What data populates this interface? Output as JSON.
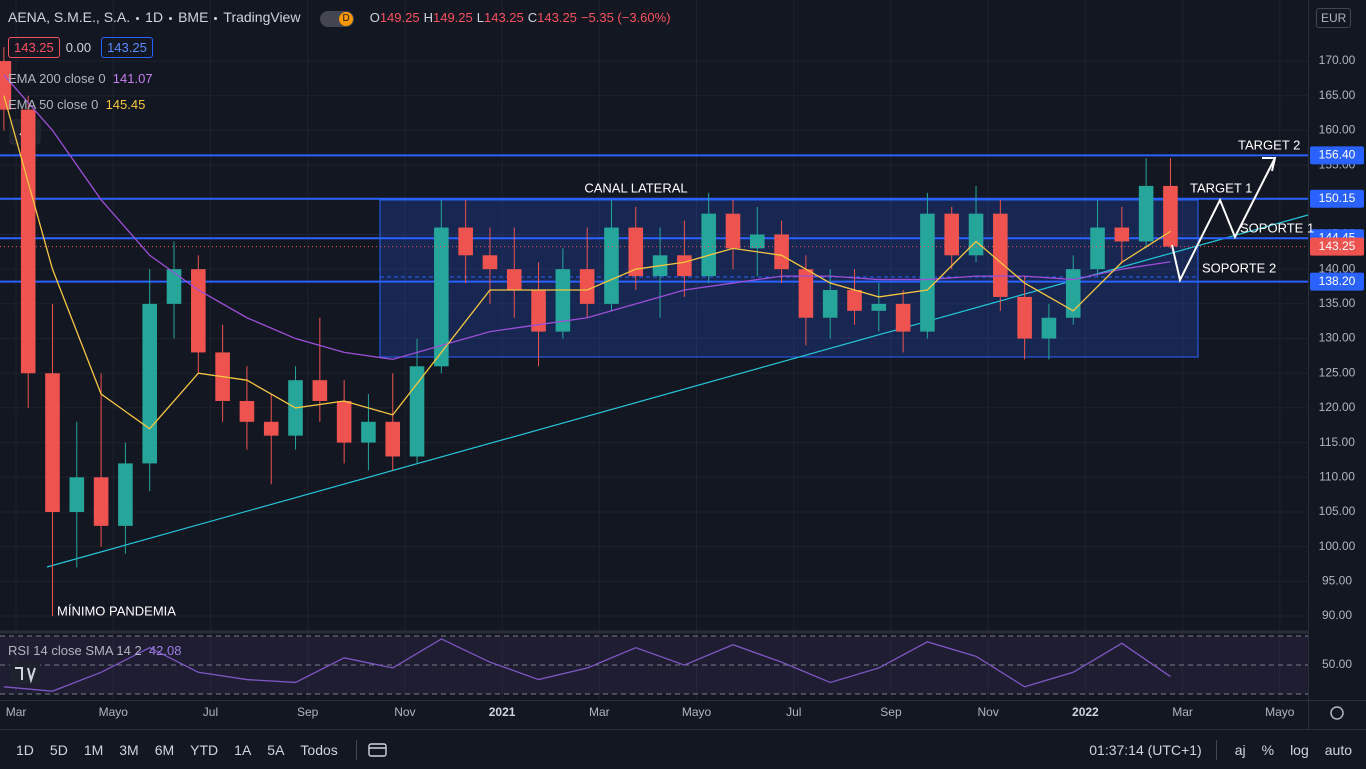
{
  "header": {
    "symbol": "AENA, S.M.E., S.A.",
    "interval": "1D",
    "exchange": "BME",
    "source": "TradingView",
    "mode": "D",
    "ohlc": [
      {
        "key": "O",
        "value": "149.25"
      },
      {
        "key": "H",
        "value": "149.25"
      },
      {
        "key": "L",
        "value": "143.25"
      },
      {
        "key": "C",
        "value": "143.25"
      }
    ],
    "change": "−5.35 (−3.60%)",
    "boxes": [
      "143.25",
      "0.00",
      "143.25"
    ],
    "currency": "EUR"
  },
  "chart_data": [
    {
      "type": "candlestick",
      "xlim": [
        -0.33,
        26.58
      ],
      "ylim": [
        87.7,
        178.8
      ],
      "xticks": [
        {
          "value": 0,
          "label": "Mar"
        },
        {
          "value": 2,
          "label": "Mayo"
        },
        {
          "value": 4,
          "label": "Jul"
        },
        {
          "value": 6,
          "label": "Sep"
        },
        {
          "value": 8,
          "label": "Nov"
        },
        {
          "value": 10,
          "label": "2021"
        },
        {
          "value": 12,
          "label": "Mar"
        },
        {
          "value": 14,
          "label": "Mayo"
        },
        {
          "value": 16,
          "label": "Jul"
        },
        {
          "value": 18,
          "label": "Sep"
        },
        {
          "value": 20,
          "label": "Nov"
        },
        {
          "value": 22,
          "label": "2022"
        },
        {
          "value": 24,
          "label": "Mar"
        },
        {
          "value": 26,
          "label": "Mayo"
        }
      ],
      "yticks": [
        {
          "value": 90,
          "label": "90.00"
        },
        {
          "value": 95,
          "label": "95.00"
        },
        {
          "value": 100,
          "label": "100.00"
        },
        {
          "value": 105,
          "label": "105.00"
        },
        {
          "value": 110,
          "label": "110.00"
        },
        {
          "value": 115,
          "label": "115.00"
        },
        {
          "value": 120,
          "label": "120.00"
        },
        {
          "value": 125,
          "label": "125.00"
        },
        {
          "value": 130,
          "label": "130.00"
        },
        {
          "value": 135,
          "label": "135.00"
        },
        {
          "value": 140,
          "label": "140.00"
        },
        {
          "value": 145,
          "label": "145.00"
        },
        {
          "value": 150,
          "label": "150.00"
        },
        {
          "value": 155,
          "label": "155.00"
        },
        {
          "value": 160,
          "label": "160.00"
        },
        {
          "value": 165,
          "label": "165.00"
        },
        {
          "value": 170,
          "label": "170.00"
        }
      ],
      "grid": true,
      "up_color": "#26a69a",
      "down_color": "#ef5350",
      "candles": {
        "x": [
          -0.25,
          0.25,
          0.75,
          1.25,
          1.75,
          2.25,
          2.75,
          3.25,
          3.75,
          4.25,
          4.75,
          5.25,
          5.75,
          6.25,
          6.75,
          7.25,
          7.75,
          8.25,
          8.75,
          9.25,
          9.75,
          10.25,
          10.75,
          11.25,
          11.75,
          12.25,
          12.75,
          13.25,
          13.75,
          14.25,
          14.75,
          15.25,
          15.75,
          16.25,
          16.75,
          17.25,
          17.75,
          18.25,
          18.75,
          19.25,
          19.75,
          20.25,
          20.75,
          21.25,
          21.75,
          22.25,
          22.75,
          23.25,
          23.75
        ],
        "open": [
          170,
          163,
          125,
          105,
          110,
          103,
          112,
          135,
          140,
          128,
          121,
          118,
          116,
          124,
          121,
          115,
          118,
          113,
          126,
          146,
          142,
          140,
          137,
          131,
          140,
          135,
          146,
          139,
          142,
          139,
          148,
          143,
          145,
          140,
          133,
          137,
          134,
          135,
          131,
          148,
          142,
          148,
          136,
          130,
          133,
          140,
          146,
          144,
          152
        ],
        "high": [
          172,
          165,
          135,
          118,
          125,
          115,
          140,
          144,
          142,
          132,
          126,
          122,
          126,
          133,
          124,
          122,
          125,
          130,
          150,
          150,
          146,
          146,
          141,
          143,
          146,
          150,
          149,
          146,
          147,
          151,
          150,
          149,
          147,
          142,
          140,
          140,
          138,
          137,
          151,
          149,
          152,
          150,
          139,
          135,
          142,
          150,
          149,
          156,
          156
        ],
        "low": [
          160,
          120,
          90,
          97,
          100,
          99,
          108,
          130,
          125,
          118,
          114,
          109,
          114,
          118,
          112,
          111,
          111,
          112,
          125,
          138,
          135,
          133,
          126,
          130,
          133,
          134,
          137,
          133,
          136,
          138,
          140,
          139,
          138,
          129,
          130,
          132,
          131,
          128,
          130,
          140,
          141,
          134,
          127,
          127,
          132,
          139,
          141,
          143,
          143
        ],
        "close": [
          163,
          125,
          105,
          110,
          103,
          112,
          135,
          140,
          128,
          121,
          118,
          116,
          124,
          121,
          115,
          118,
          113,
          126,
          146,
          142,
          140,
          137,
          131,
          140,
          135,
          146,
          139,
          142,
          139,
          148,
          143,
          145,
          140,
          133,
          137,
          134,
          135,
          131,
          148,
          142,
          148,
          136,
          130,
          133,
          140,
          146,
          144,
          152,
          143.25
        ]
      },
      "series": [
        {
          "name": "EMA 200 close 0",
          "color": "#9c4fd6",
          "x": [
            -0.25,
            0.75,
            1.75,
            2.75,
            3.75,
            4.75,
            5.75,
            6.75,
            7.75,
            8.75,
            9.75,
            10.75,
            11.75,
            12.75,
            13.75,
            14.75,
            15.75,
            16.75,
            17.75,
            18.75,
            19.75,
            20.75,
            21.75,
            22.75,
            23.75
          ],
          "values": [
            168,
            160,
            150,
            142,
            137,
            133,
            130,
            128,
            127,
            129,
            131,
            132,
            133,
            135,
            137,
            138,
            139,
            139,
            138.5,
            138.5,
            139,
            139,
            138.5,
            140,
            141.07
          ]
        },
        {
          "name": "EMA 50 close 0",
          "color": "#f5c542",
          "x": [
            -0.25,
            0.75,
            1.75,
            2.75,
            3.75,
            4.75,
            5.75,
            6.75,
            7.75,
            8.75,
            9.75,
            10.75,
            11.75,
            12.75,
            13.75,
            14.75,
            15.75,
            16.75,
            17.75,
            18.75,
            19.75,
            20.75,
            21.75,
            22.75,
            23.75
          ],
          "values": [
            165,
            140,
            122,
            117,
            125,
            124,
            120,
            121,
            119,
            128,
            137,
            137,
            137,
            140,
            141,
            143,
            142,
            138,
            136,
            137,
            144,
            138,
            134,
            141,
            145.45
          ]
        }
      ],
      "levels": [
        {
          "value": 156.4,
          "label": "156.40"
        },
        {
          "value": 150.15,
          "label": "150.15"
        },
        {
          "value": 144.45,
          "label": "144.45"
        },
        {
          "value": 138.2,
          "label": "138.20"
        }
      ],
      "level_color": "#2962ff",
      "annotations": [
        "CANAL LATERAL",
        "TARGET 2",
        "TARGET 1",
        "SOPORTE 1",
        "SOPORTE 2",
        "MÍNIMO PANDEMIA"
      ]
    },
    {
      "type": "line",
      "ylim": [
        25.9,
        72.8
      ],
      "yticks": [
        {
          "value": 50,
          "label": "50.00"
        }
      ],
      "bands": [
        30,
        70
      ],
      "series": [
        {
          "name": "RSI 14 close SMA 14 2",
          "color": "#7e57c2",
          "x": [
            -0.25,
            0.75,
            1.75,
            2.75,
            3.75,
            4.75,
            5.75,
            6.75,
            7.75,
            8.75,
            9.75,
            10.75,
            11.75,
            12.75,
            13.75,
            14.75,
            15.75,
            16.75,
            17.75,
            18.75,
            19.75,
            20.75,
            21.75,
            22.75,
            23.75
          ],
          "values": [
            35,
            32,
            45,
            62,
            45,
            40,
            38,
            55,
            48,
            68,
            52,
            40,
            48,
            62,
            50,
            64,
            52,
            38,
            48,
            66,
            56,
            35,
            45,
            65,
            42.08
          ]
        }
      ]
    }
  ],
  "toolbar": {
    "ranges": [
      "1D",
      "5D",
      "1M",
      "3M",
      "6M",
      "YTD",
      "1A",
      "5A",
      "Todos"
    ],
    "clock": "01:37:14 (UTC+1)",
    "options": [
      "aj",
      "%",
      "log",
      "auto"
    ]
  }
}
